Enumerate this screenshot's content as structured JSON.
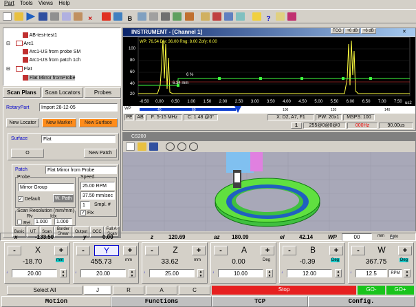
{
  "menu": [
    "Part",
    "Tools",
    "Views",
    "Help"
  ],
  "toolbar_icons": [
    "new-icon",
    "open-icon",
    "play-icon",
    "save-icon",
    "cut-icon",
    "copy-icon",
    "paste-icon",
    "delete-icon",
    "scan-icon",
    "probe-icon",
    "bold-icon",
    "grid-icon",
    "list-icon",
    "filter-icon",
    "chart-icon",
    "tool-icon",
    "refresh-icon",
    "marker-icon",
    "window-icon",
    "tile-icon",
    "help-icon",
    "info-icon",
    "whatsthis-icon",
    "link-icon"
  ],
  "tree": {
    "items": [
      "AB-test-test1",
      "Arc1",
      "Arc1-US from probe SM",
      "Arc1-US from patch 1ch",
      "Flat",
      "Flat Mirror fromProbe"
    ]
  },
  "left_tabs": [
    "Scan Plans",
    "Scan Locators",
    "Probes"
  ],
  "rotary": {
    "label": "RotaryPart",
    "value": "Import 28-12-05",
    "new_locator": "New Locator",
    "new_marker": "New Marker",
    "new_surface": "New Surface"
  },
  "surface": {
    "label": "Surface",
    "value": "Flat",
    "o_button": "O",
    "new_patch": "New Patch"
  },
  "patch": {
    "label": "Patch",
    "value": "Flat Mirror from Probe"
  },
  "probe": {
    "title": "Probe",
    "select": "Mirror Group",
    "default_label": "Default",
    "wpath": "W. Path"
  },
  "speed": {
    "title": "Speed",
    "rpm": "25.00 RPM",
    "mmsec": "37.50 mm/sec",
    "smpl": "1",
    "smpl_label": "Smpl. #",
    "fix_label": "Fix"
  },
  "scan_res": {
    "title": "Scan Resolution (mm/mm)",
    "rv": "Rv",
    "idx": "Idx",
    "rel": "Rel.",
    "v1": "1.000",
    "v2": "1.000"
  },
  "bottom_tabs": [
    "Basic",
    "UT",
    "Scan",
    "Border Shear",
    "Output",
    "OCC",
    "Full A-Scan"
  ],
  "instrument": {
    "title": "INSTRUMENT - [Channel 1]",
    "header_buttons": [
      "TCG",
      "+6 dB",
      "+6 dB"
    ],
    "readout": "WP: 76.54   Dly: 36.00   Rng: 8.00   Zofy: 0.00",
    "cursor_text": "6 %",
    "cursor_text2": "6.34 mm",
    "y_ticks": [
      "100",
      "80",
      "60",
      "40",
      "20"
    ],
    "x_ticks": [
      "-0.50",
      "0.00",
      "0.50",
      "1.00",
      "1.50",
      "2.00",
      "2.50",
      "3.00",
      "3.50",
      "4.00",
      "4.50",
      "5.00",
      "5.50",
      "6.00",
      "6.50",
      "7.00",
      "7.50"
    ],
    "x_unit": "us2",
    "wp_label": "WP",
    "wp_ticks": [
      "40",
      "60",
      "100",
      "120",
      "140"
    ],
    "status": [
      "PE",
      "AB",
      "F: 5-15 MHz",
      "C: 1.48 @0°",
      "X: D2, A7, F1",
      "PW: 20x1",
      "MSPS: 100"
    ],
    "status2": [
      "1",
      "255@0@0@0",
      "000Hz",
      "90.00us"
    ]
  },
  "view3d": {
    "title": "CS200"
  },
  "axes": {
    "x": {
      "label": "x",
      "value": "-133.50"
    },
    "y": {
      "label": "y",
      "value": "0.00"
    },
    "z": {
      "label": "z",
      "value": "120.69"
    },
    "az": {
      "label": "az",
      "value": "180.09"
    },
    "el": {
      "label": "el",
      "value": "42.14"
    },
    "wp": {
      "label": "WP",
      "value": "00",
      "unit": "mm",
      "auto": "Auto"
    }
  },
  "controls": [
    {
      "name": "X",
      "value": "-18.70",
      "unit": "mm",
      "step": "20.00",
      "minus": "-",
      "plus": "+"
    },
    {
      "name": "Y",
      "value": "455.73",
      "unit": "mm",
      "step": "20.00",
      "minus": "-",
      "plus": "+"
    },
    {
      "name": "Z",
      "value": "33.62",
      "unit": "mm",
      "step": "25.00",
      "minus": "-",
      "plus": "+"
    },
    {
      "name": "A",
      "value": "0.00",
      "unit": "Deg",
      "step": "10.00",
      "minus": "-",
      "plus": "+"
    },
    {
      "name": "B",
      "value": "-0.39",
      "unit": "Deg",
      "step": "12.00",
      "minus": "-",
      "plus": "+"
    },
    {
      "name": "W",
      "value": "367.75",
      "unit": "Deg",
      "step": "12.5",
      "step_unit": "RPM",
      "minus": "-",
      "plus": "+"
    }
  ],
  "action_bar": {
    "select_all": "Select All",
    "j": "J",
    "r": "R",
    "a": "A",
    "c": "C",
    "stop": "Stop",
    "go_minus": "GO-",
    "go_plus": "GO+"
  },
  "bottom_tabs_main": [
    "Motion",
    "Functions",
    "TCP",
    "Config."
  ],
  "colors": {
    "stop": "#e62020",
    "go": "#19c41c",
    "orange": "#ff8c1a",
    "dark_blue": "#0a246a",
    "cyan": "#19c8c8"
  }
}
